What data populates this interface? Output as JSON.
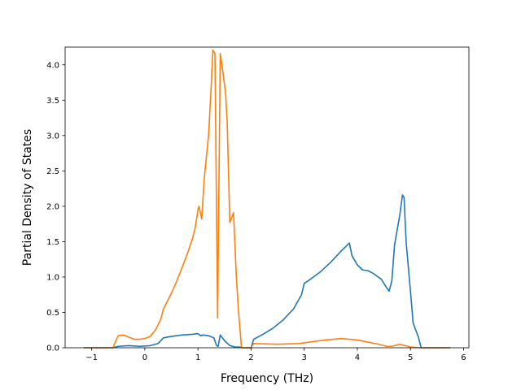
{
  "chart_data": {
    "type": "line",
    "title": "",
    "xlabel": "Frequency (THz)",
    "ylabel": "Partial Density of States",
    "xlim": [
      -1.5,
      6.1
    ],
    "ylim": [
      0.0,
      4.25
    ],
    "xticks": [
      -1,
      0,
      1,
      2,
      3,
      4,
      5,
      6
    ],
    "xtick_labels": [
      "−1",
      "0",
      "1",
      "2",
      "3",
      "4",
      "5",
      "6"
    ],
    "yticks": [
      0.0,
      0.5,
      1.0,
      1.5,
      2.0,
      2.5,
      3.0,
      3.5,
      4.0
    ],
    "ytick_labels": [
      "0.0",
      "0.5",
      "1.0",
      "1.5",
      "2.0",
      "2.5",
      "3.0",
      "3.5",
      "4.0"
    ],
    "grid": false,
    "legend": "none",
    "series": [
      {
        "color": "#1f77b4",
        "x": [
          -1.15,
          -0.6,
          -0.5,
          -0.3,
          -0.1,
          0.1,
          0.25,
          0.35,
          0.5,
          0.7,
          0.9,
          1.0,
          1.05,
          1.1,
          1.2,
          1.3,
          1.35,
          1.38,
          1.42,
          1.5,
          1.6,
          1.7,
          1.8,
          1.85,
          1.95,
          2.0,
          2.05,
          2.2,
          2.4,
          2.6,
          2.8,
          2.95,
          3.0,
          3.1,
          3.3,
          3.5,
          3.7,
          3.85,
          3.9,
          4.0,
          4.1,
          4.2,
          4.3,
          4.45,
          4.55,
          4.6,
          4.65,
          4.7,
          4.8,
          4.85,
          4.88,
          4.92,
          5.0,
          5.05,
          5.15,
          5.2,
          5.75
        ],
        "values": [
          0.0,
          0.0,
          0.02,
          0.03,
          0.02,
          0.03,
          0.06,
          0.14,
          0.16,
          0.18,
          0.19,
          0.2,
          0.17,
          0.18,
          0.17,
          0.14,
          0.03,
          0.02,
          0.18,
          0.1,
          0.03,
          0.01,
          0.01,
          0.0,
          0.0,
          0.0,
          0.12,
          0.18,
          0.27,
          0.39,
          0.55,
          0.75,
          0.91,
          0.96,
          1.07,
          1.21,
          1.37,
          1.48,
          1.3,
          1.17,
          1.1,
          1.09,
          1.05,
          0.97,
          0.85,
          0.8,
          0.95,
          1.45,
          1.88,
          2.16,
          2.12,
          1.48,
          0.8,
          0.35,
          0.15,
          0.0,
          0.0
        ]
      },
      {
        "color": "#ff7f0e",
        "x": [
          -1.15,
          -0.6,
          -0.55,
          -0.5,
          -0.4,
          -0.3,
          -0.2,
          -0.1,
          0.0,
          0.1,
          0.2,
          0.3,
          0.35,
          0.4,
          0.5,
          0.6,
          0.7,
          0.8,
          0.9,
          0.95,
          1.0,
          1.02,
          1.07,
          1.12,
          1.2,
          1.25,
          1.28,
          1.32,
          1.37,
          1.42,
          1.47,
          1.52,
          1.55,
          1.6,
          1.67,
          1.72,
          1.76,
          1.82,
          1.85,
          1.9,
          2.0,
          2.05,
          2.5,
          2.9,
          3.1,
          3.4,
          3.7,
          4.0,
          4.2,
          4.4,
          4.55,
          4.65,
          4.8,
          4.9,
          5.0,
          5.2,
          5.75
        ],
        "values": [
          0.0,
          0.0,
          0.09,
          0.17,
          0.18,
          0.15,
          0.12,
          0.12,
          0.13,
          0.16,
          0.25,
          0.4,
          0.55,
          0.62,
          0.77,
          0.94,
          1.13,
          1.33,
          1.55,
          1.7,
          1.95,
          2.0,
          1.82,
          2.4,
          3.0,
          3.7,
          4.21,
          4.16,
          0.42,
          4.16,
          3.9,
          3.6,
          3.2,
          1.77,
          1.91,
          1.05,
          0.55,
          0.0,
          0.0,
          0.0,
          0.0,
          0.06,
          0.05,
          0.06,
          0.08,
          0.11,
          0.13,
          0.11,
          0.08,
          0.05,
          0.02,
          0.02,
          0.05,
          0.03,
          0.01,
          0.0,
          0.0
        ]
      }
    ]
  }
}
